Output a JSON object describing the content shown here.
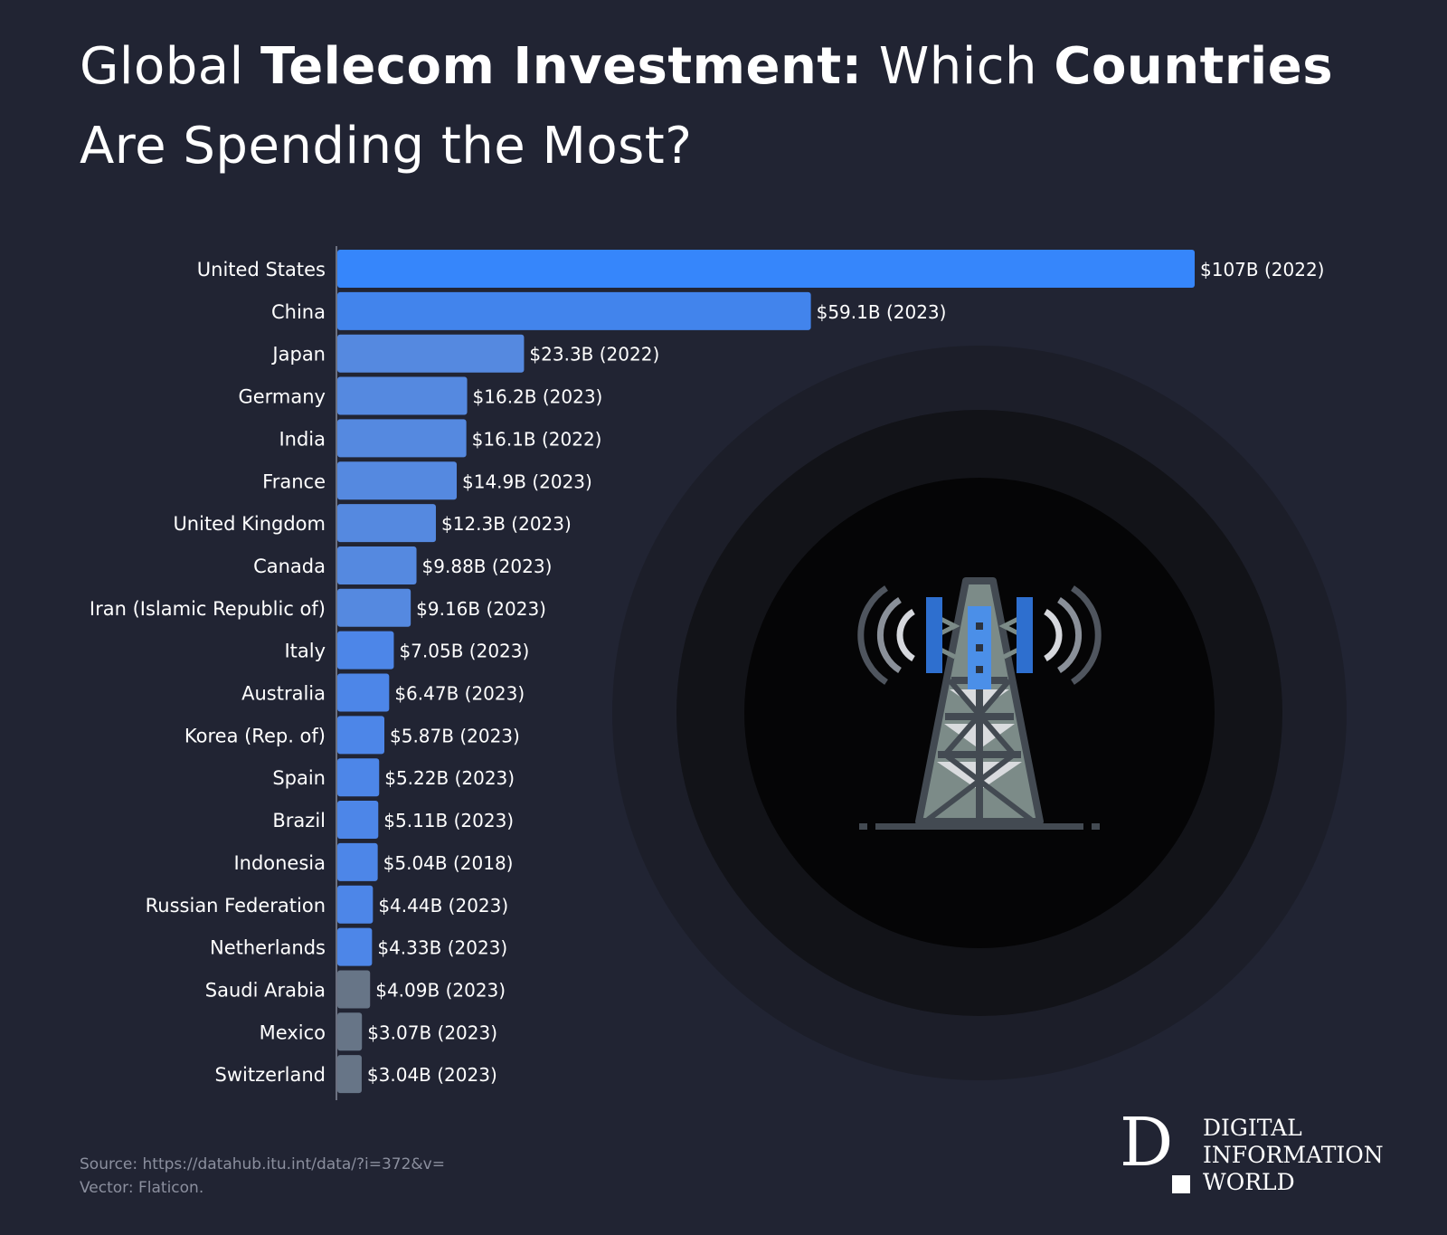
{
  "title": {
    "t1": "Global ",
    "b1": "Telecom Investment:",
    "t2": " Which ",
    "b2": "Countries",
    "t3": " Are Spending the Most?"
  },
  "colors": {
    "background": "#212433",
    "top_bar": "#3686fb",
    "second_bar": "#4284ec",
    "mid_bar": "#5589e0",
    "low_bar": "#4d86e8",
    "gray_bar": "#677587",
    "axis": "#6b7080"
  },
  "chart_data": {
    "type": "bar",
    "orientation": "horizontal",
    "title": "Global Telecom Investment: Which Countries Are Spending the Most?",
    "categories": [
      "United States",
      "China",
      "Japan",
      "Germany",
      "India",
      "France",
      "United Kingdom",
      "Canada",
      "Iran (Islamic Republic of)",
      "Italy",
      "Australia",
      "Korea (Rep. of)",
      "Spain",
      "Brazil",
      "Indonesia",
      "Russian Federation",
      "Netherlands",
      "Saudi Arabia",
      "Mexico",
      "Switzerland"
    ],
    "values": [
      107,
      59.1,
      23.3,
      16.2,
      16.1,
      14.9,
      12.3,
      9.88,
      9.16,
      7.05,
      6.47,
      5.87,
      5.22,
      5.11,
      5.04,
      4.44,
      4.33,
      4.09,
      3.07,
      3.04
    ],
    "labels": [
      "$107B (2022)",
      "$59.1B (2023)",
      "$23.3B (2022)",
      "$16.2B (2023)",
      "$16.1B (2022)",
      "$14.9B (2023)",
      "$12.3B (2023)",
      "$9.88B (2023)",
      "$9.16B (2023)",
      "$7.05B (2023)",
      "$6.47B (2023)",
      "$5.87B (2023)",
      "$5.22B (2023)",
      "$5.11B (2023)",
      "$5.04B (2018)",
      "$4.44B (2023)",
      "$4.33B (2023)",
      "$4.09B (2023)",
      "$3.07B (2023)",
      "$3.04B (2023)"
    ],
    "xlim": [
      0,
      107
    ],
    "unit": "USD billions",
    "xlabel": "",
    "ylabel": ""
  },
  "source": {
    "line1": "Source: https://datahub.itu.int/data/?i=372&v=",
    "line2": "Vector: Flaticon."
  },
  "logo": {
    "mark": "D",
    "line1": "DIGITAL",
    "line2": "INFORMATION",
    "line3": "WORLD"
  },
  "illustration": {
    "icon": "cell-tower-icon"
  }
}
